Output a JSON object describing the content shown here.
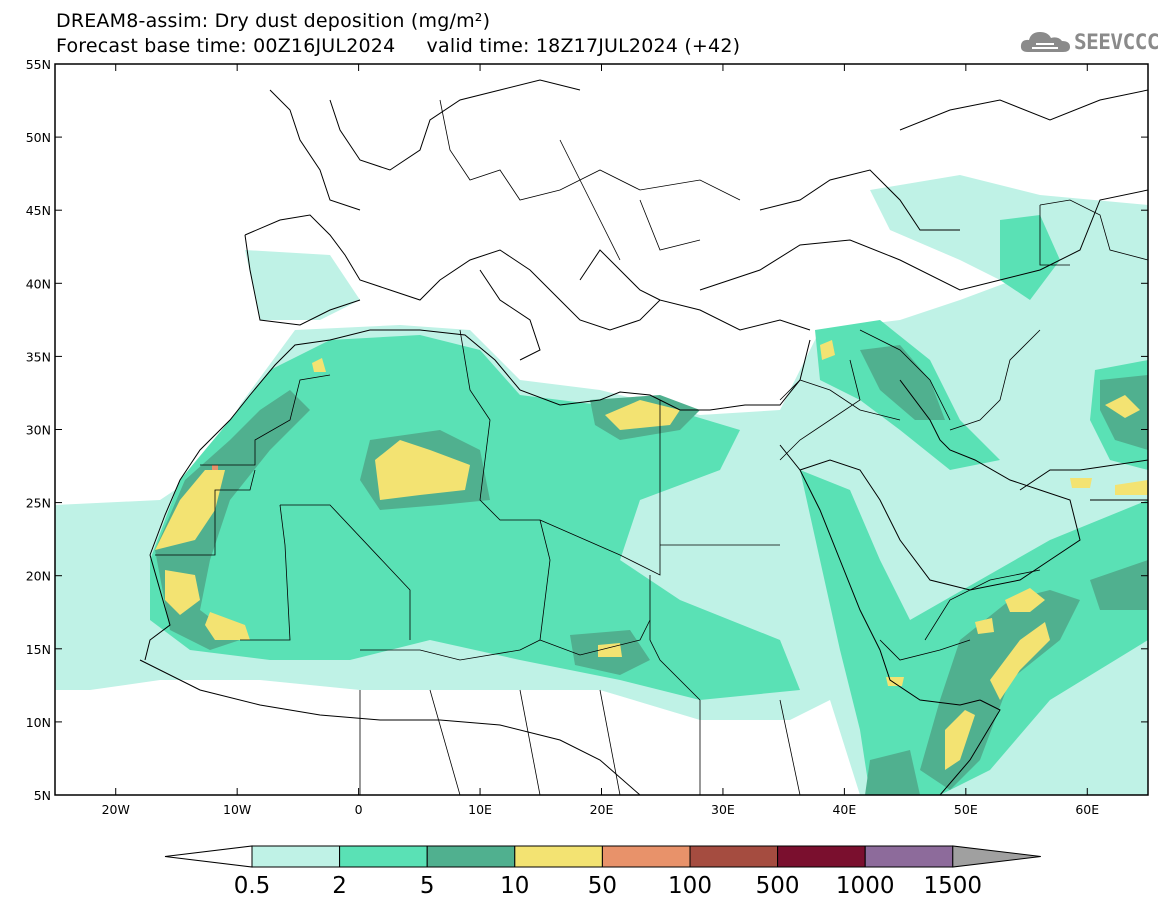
{
  "title": {
    "line1": "DREAM8-assim: Dry dust deposition (mg/m²)",
    "line2": "Forecast base time: 00Z16JUL2024     valid time: 18Z17JUL2024 (+42)"
  },
  "logo": {
    "text": "SEEVCCC",
    "icon": "cloud-icon"
  },
  "map": {
    "lat_labels": [
      "55N",
      "50N",
      "45N",
      "40N",
      "35N",
      "30N",
      "25N",
      "20N",
      "15N",
      "10N",
      "5N"
    ],
    "lon_labels": [
      "20W",
      "10W",
      "0",
      "10E",
      "20E",
      "30E",
      "40E",
      "50E",
      "60E"
    ]
  },
  "legend": {
    "labels": [
      "0.5",
      "2",
      "5",
      "10",
      "50",
      "100",
      "500",
      "1000",
      "1500"
    ],
    "colors": [
      "#bff2e6",
      "#5ae1b5",
      "#50b08f",
      "#f3e372",
      "#e8926a",
      "#a54c40",
      "#7a0f2e",
      "#8d6b9b"
    ],
    "under_color": "#ffffff",
    "over_color": "#a0a0a0"
  }
}
